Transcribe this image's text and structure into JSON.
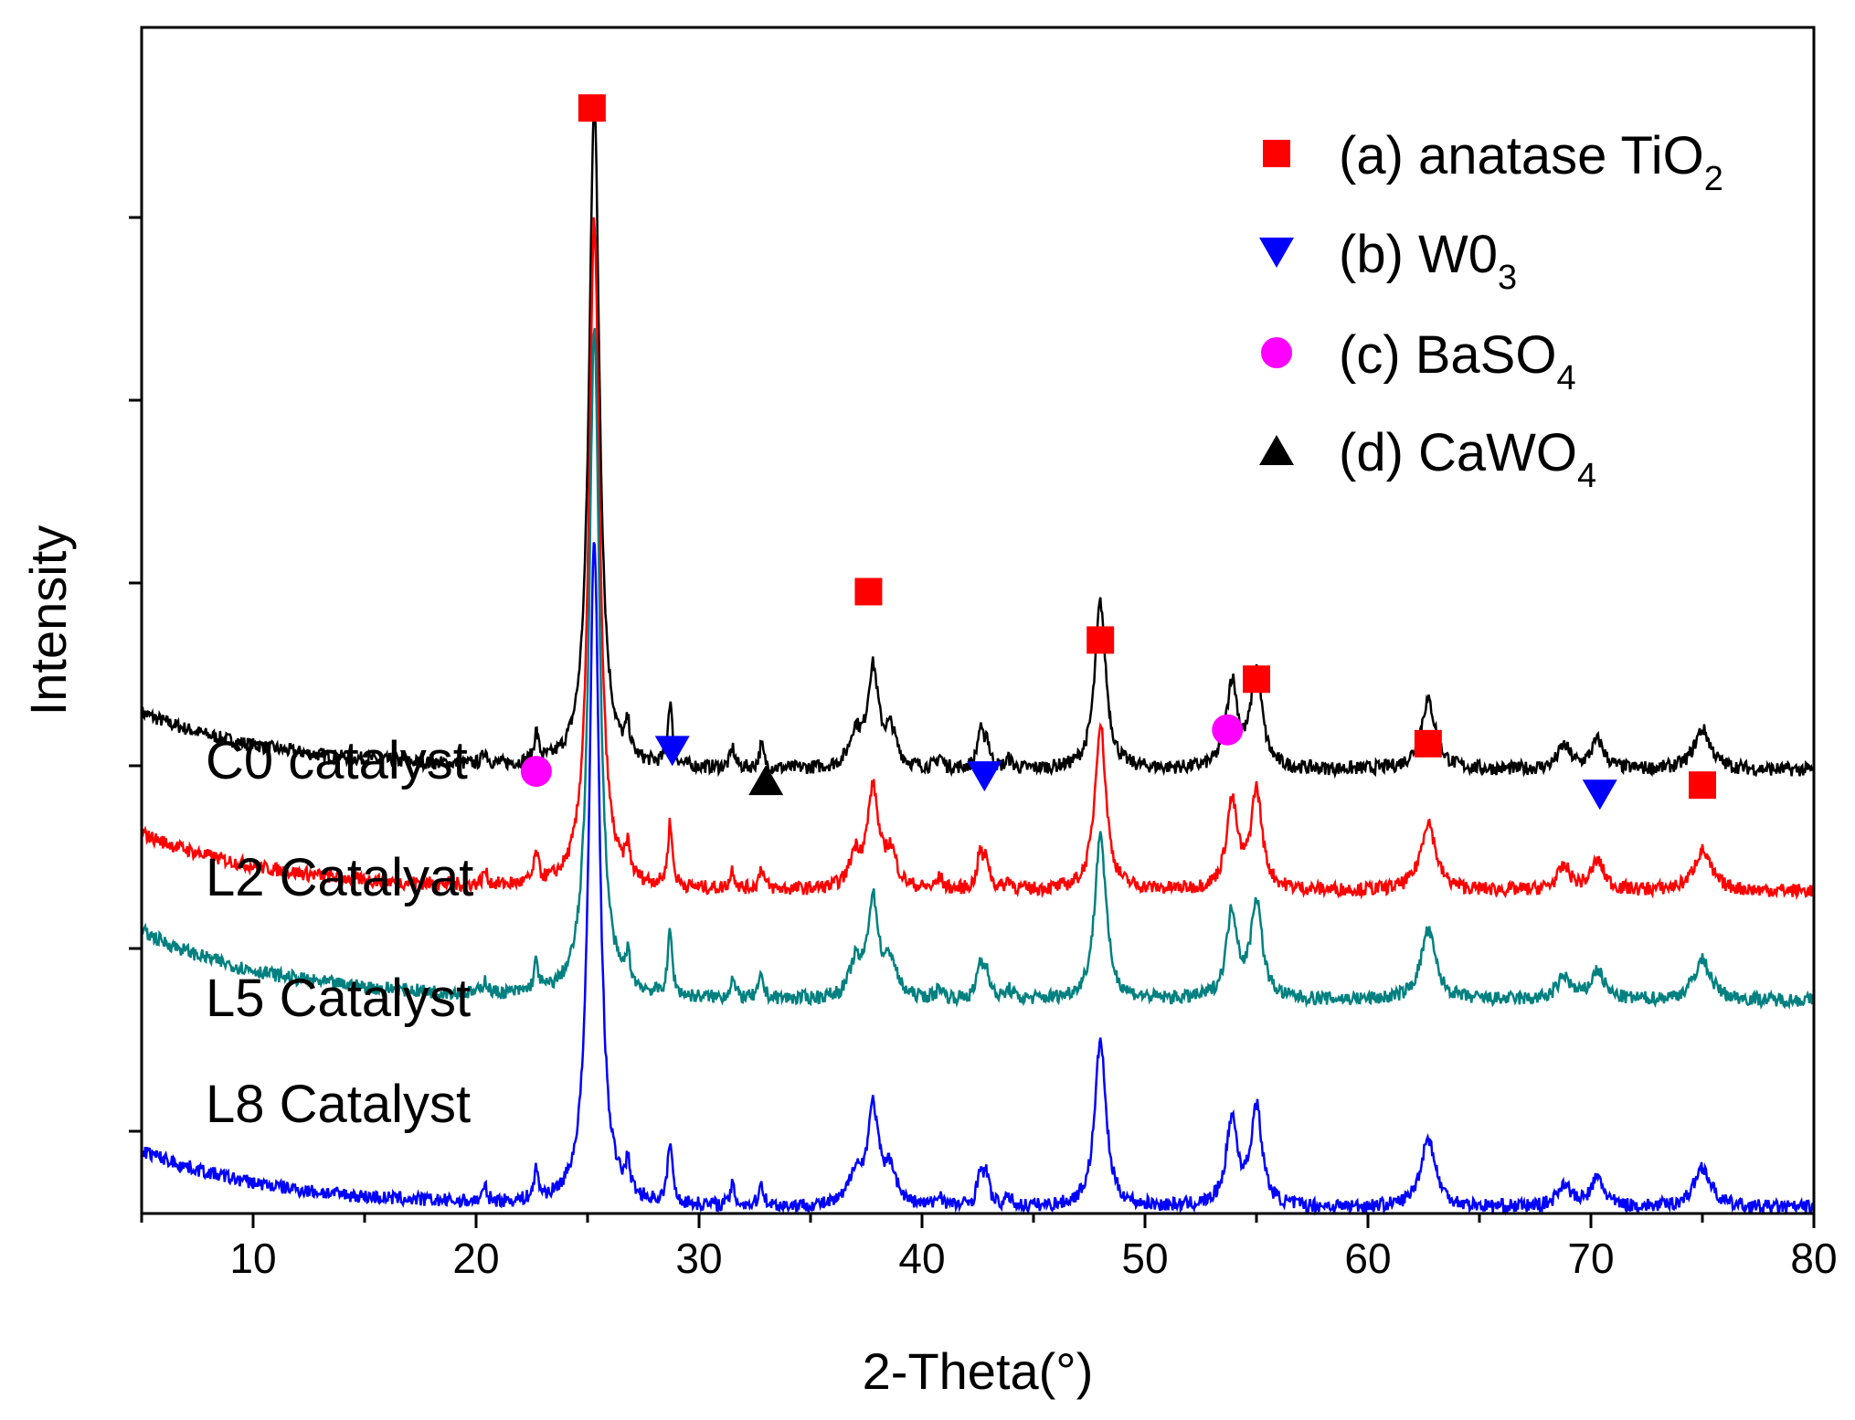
{
  "chart_data": {
    "type": "line",
    "title": "",
    "xlabel": "2-Theta(°)",
    "ylabel": "Intensity",
    "xlim": [
      5,
      80
    ],
    "ylim": [
      0,
      10.3
    ],
    "xticks": [
      10,
      20,
      30,
      40,
      50,
      60,
      70,
      80
    ],
    "y_tick_labels_shown": false,
    "grid": false,
    "legend_position": "top-right",
    "legend": [
      {
        "key": "anatase",
        "label": "(a) anatase TiO",
        "sub": "2",
        "marker": "square",
        "color": "#ff0000"
      },
      {
        "key": "wo3",
        "label": "(b) W0",
        "sub": "3",
        "marker": "triangle-down",
        "color": "#0000ff"
      },
      {
        "key": "baso4",
        "label": "(c) BaSO",
        "sub": "4",
        "marker": "circle",
        "color": "#ff00ff"
      },
      {
        "key": "cawo4",
        "label": "(d) CaWO",
        "sub": "4",
        "marker": "triangle-up",
        "color": "#000000"
      }
    ],
    "series": [
      {
        "name": "C0 catalyst",
        "color": "#000000",
        "baseline": 3.85,
        "start_rise": 0.5,
        "offset_label": "C0 catalyst",
        "peak_scale": 1.0
      },
      {
        "name": "L2 Catalyat",
        "color": "#ff0000",
        "baseline": 2.8,
        "start_rise": 0.5,
        "offset_label": "L2 Catalyat",
        "peak_scale": 1.0
      },
      {
        "name": "L5 Catalyst",
        "color": "#008080",
        "baseline": 1.85,
        "start_rise": 0.6,
        "offset_label": "L5 Catalyst",
        "peak_scale": 1.0
      },
      {
        "name": "L8 Catalyst",
        "color": "#0000ff",
        "baseline": 0.05,
        "start_rise": 0.5,
        "offset_label": "L8 Catalyst",
        "peak_scale": 1.0
      }
    ],
    "peaks": [
      {
        "x": 20.4,
        "h": 0.12,
        "w": 0.12
      },
      {
        "x": 22.7,
        "h": 0.25,
        "w": 0.12
      },
      {
        "x": 25.3,
        "h": 5.8,
        "w": 0.28
      },
      {
        "x": 26.8,
        "h": 0.25,
        "w": 0.12
      },
      {
        "x": 28.7,
        "h": 0.55,
        "w": 0.12
      },
      {
        "x": 31.5,
        "h": 0.17,
        "w": 0.12
      },
      {
        "x": 32.8,
        "h": 0.2,
        "w": 0.12
      },
      {
        "x": 37.0,
        "h": 0.28,
        "w": 0.3
      },
      {
        "x": 37.8,
        "h": 0.85,
        "w": 0.3
      },
      {
        "x": 38.6,
        "h": 0.3,
        "w": 0.3
      },
      {
        "x": 40.8,
        "h": 0.1,
        "w": 0.15
      },
      {
        "x": 42.6,
        "h": 0.3,
        "w": 0.15
      },
      {
        "x": 42.9,
        "h": 0.25,
        "w": 0.15
      },
      {
        "x": 43.9,
        "h": 0.08,
        "w": 0.15
      },
      {
        "x": 48.0,
        "h": 1.45,
        "w": 0.3
      },
      {
        "x": 53.9,
        "h": 0.75,
        "w": 0.3
      },
      {
        "x": 55.0,
        "h": 0.85,
        "w": 0.3
      },
      {
        "x": 62.7,
        "h": 0.6,
        "w": 0.4
      },
      {
        "x": 68.8,
        "h": 0.2,
        "w": 0.35
      },
      {
        "x": 70.3,
        "h": 0.25,
        "w": 0.35
      },
      {
        "x": 75.0,
        "h": 0.35,
        "w": 0.45
      }
    ],
    "markers": [
      {
        "phase": "anatase",
        "x": 25.2,
        "y": 9.6
      },
      {
        "phase": "anatase",
        "x": 37.6,
        "y": 5.4
      },
      {
        "phase": "anatase",
        "x": 48.0,
        "y": 4.98
      },
      {
        "phase": "anatase",
        "x": 55.0,
        "y": 4.64
      },
      {
        "phase": "anatase",
        "x": 62.7,
        "y": 4.08
      },
      {
        "phase": "anatase",
        "x": 75.0,
        "y": 3.72
      },
      {
        "phase": "wo3",
        "x": 28.8,
        "y": 4.02
      },
      {
        "phase": "wo3",
        "x": 42.8,
        "y": 3.8
      },
      {
        "phase": "wo3",
        "x": 70.4,
        "y": 3.64
      },
      {
        "phase": "baso4",
        "x": 22.7,
        "y": 3.84
      },
      {
        "phase": "baso4",
        "x": 53.7,
        "y": 4.2
      },
      {
        "phase": "cawo4",
        "x": 33.0,
        "y": 3.76
      }
    ]
  }
}
